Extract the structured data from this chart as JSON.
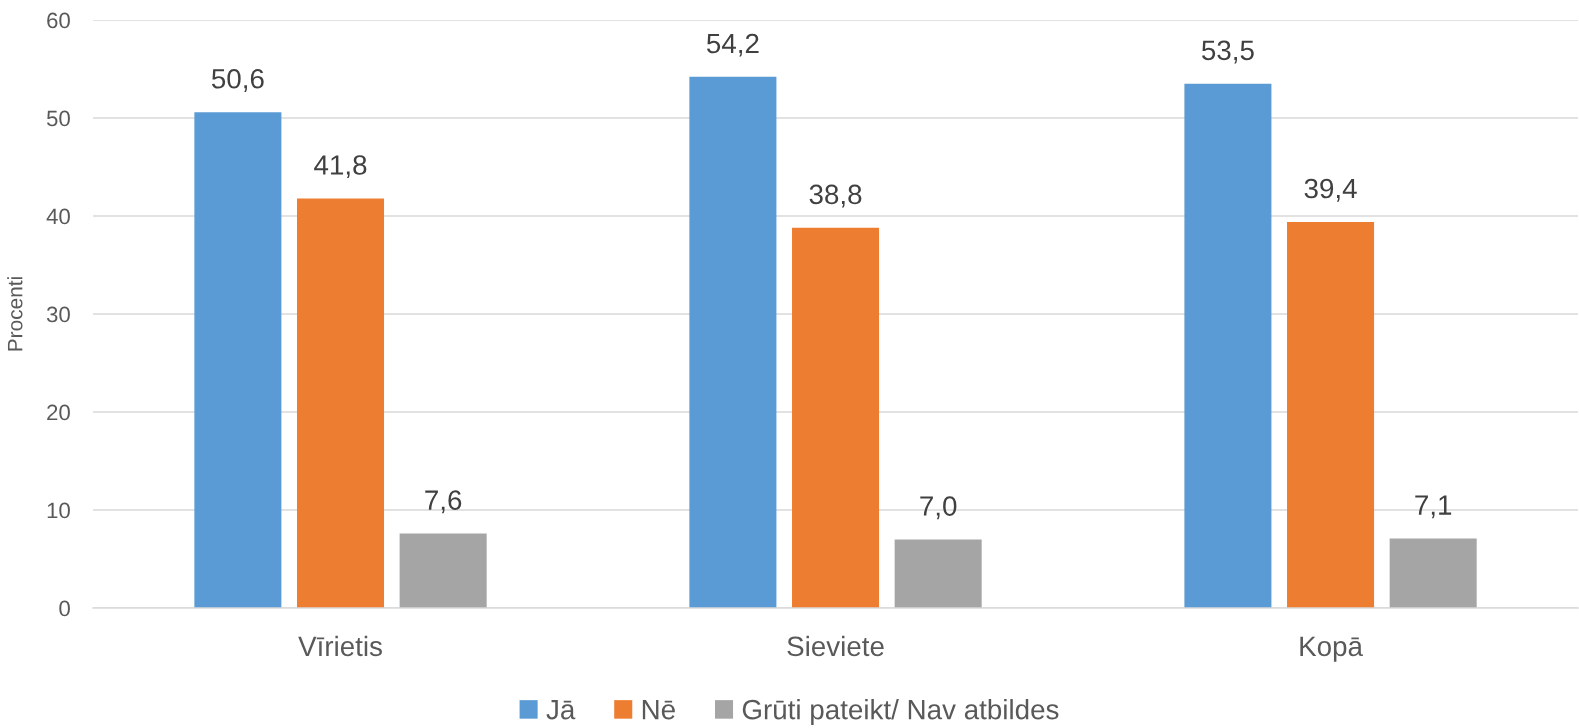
{
  "chart_data": {
    "type": "bar",
    "categories": [
      "Vīrietis",
      "Sieviete",
      "Kopā"
    ],
    "series": [
      {
        "name": "Jā",
        "color": "#5b9bd5",
        "values": [
          50.6,
          54.2,
          53.5
        ],
        "value_labels": [
          "50,6",
          "54,2",
          "53,5"
        ]
      },
      {
        "name": "Nē",
        "color": "#ed7d31",
        "values": [
          41.8,
          38.8,
          39.4
        ],
        "value_labels": [
          "41,8",
          "38,8",
          "39,4"
        ]
      },
      {
        "name": "Grūti pateikt/ Nav atbildes",
        "color": "#a5a5a5",
        "values": [
          7.6,
          7.0,
          7.1
        ],
        "value_labels": [
          "7,6",
          "7,0",
          "7,1"
        ]
      }
    ],
    "ylabel": "Procenti",
    "ylim": [
      0,
      60
    ],
    "yticks": [
      0,
      10,
      20,
      30,
      40,
      50,
      60
    ],
    "grid": "y",
    "legend": "bottom"
  }
}
